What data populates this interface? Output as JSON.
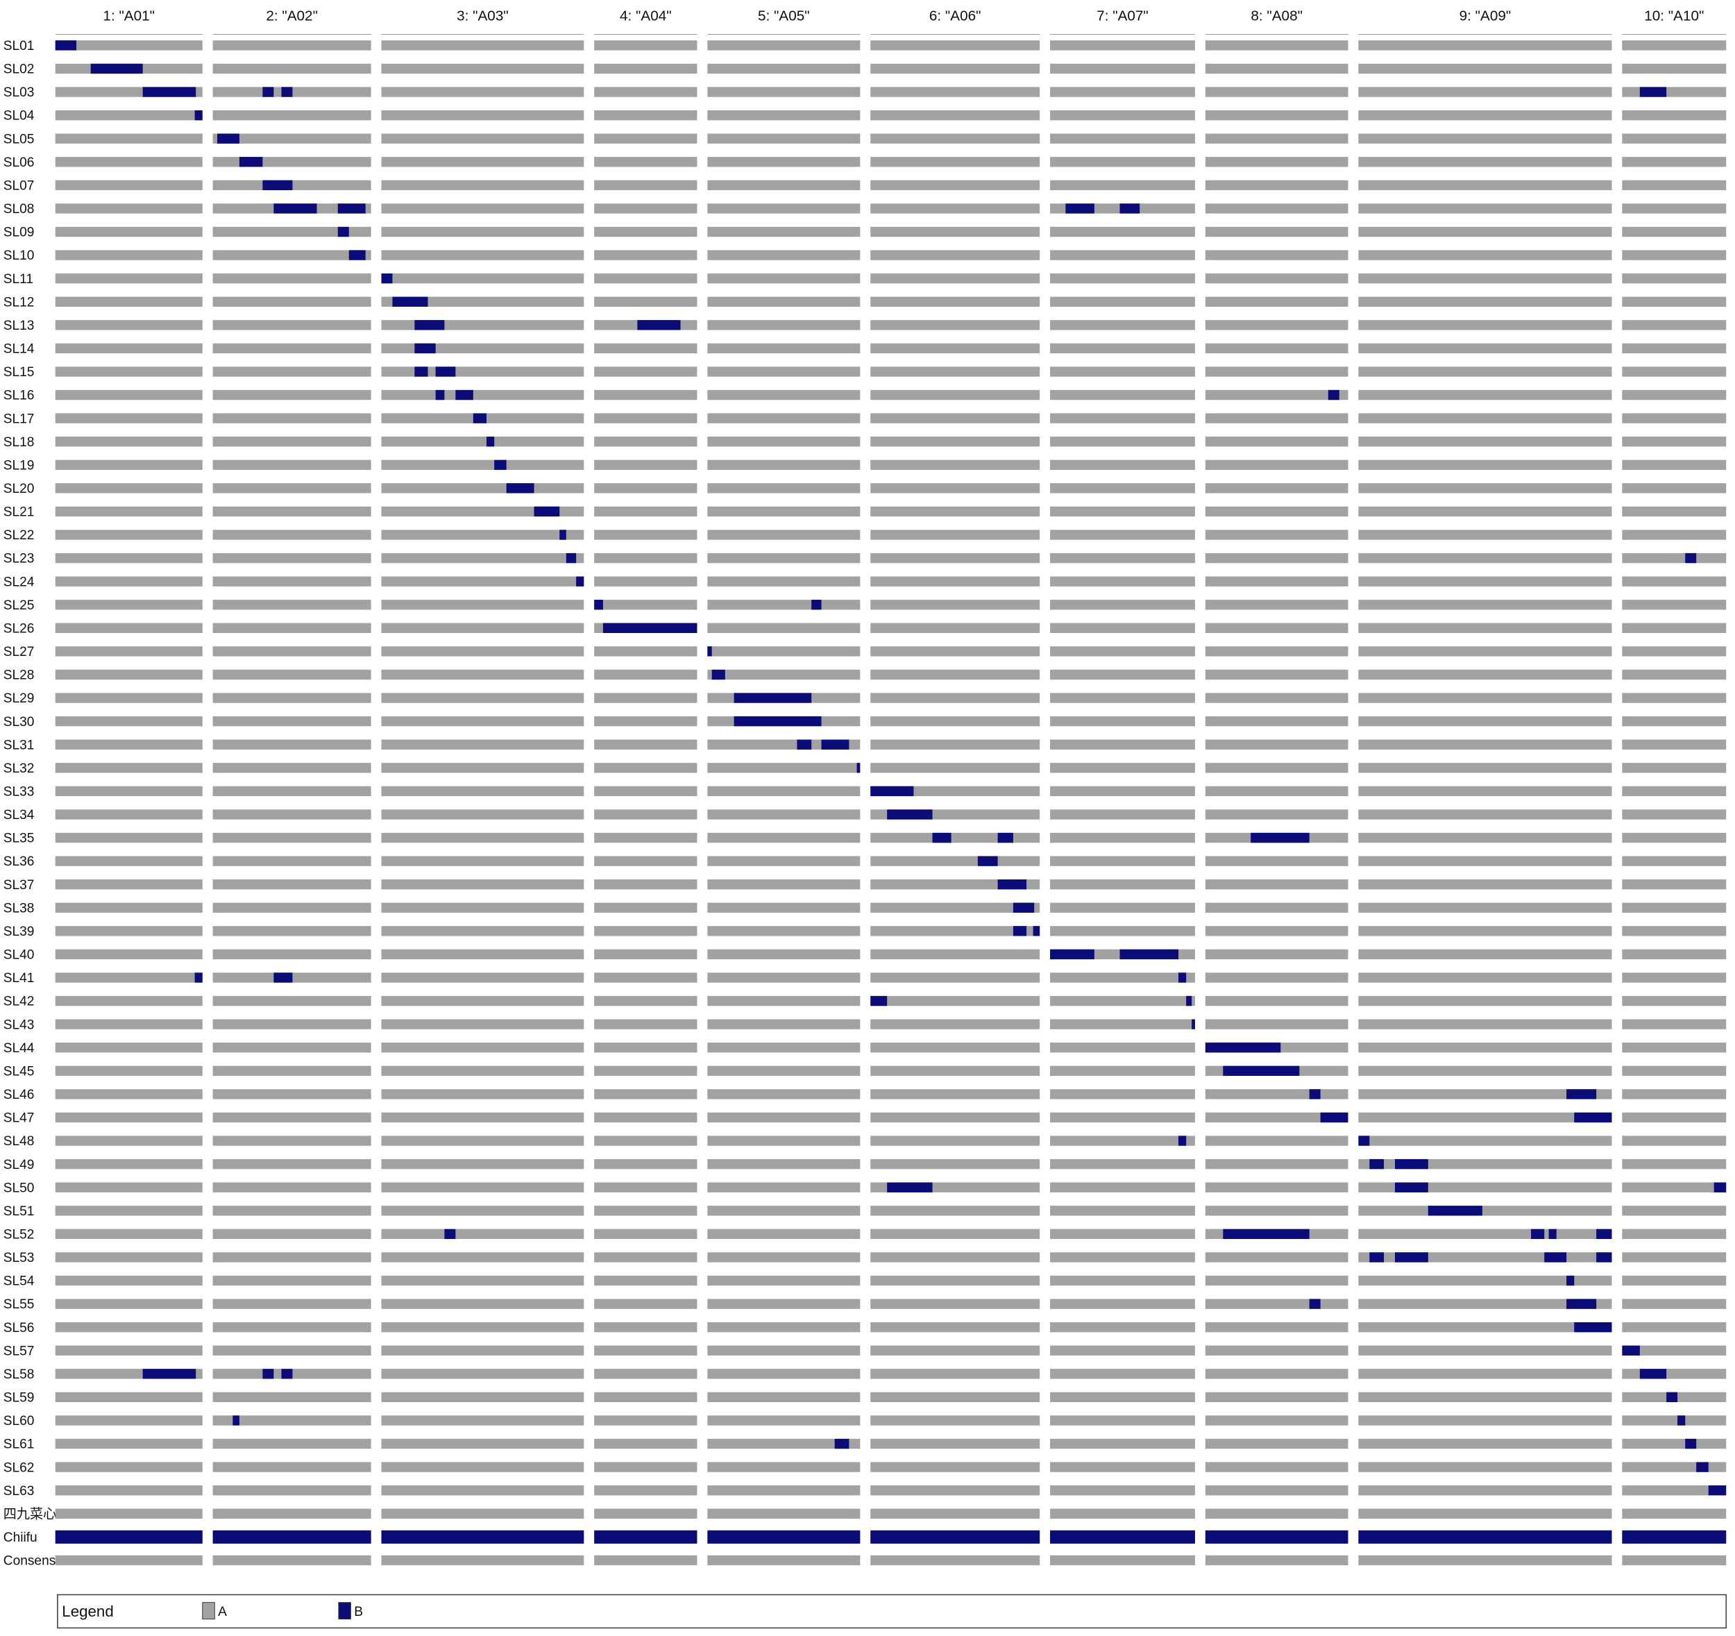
{
  "chart_data": {
    "type": "genotype",
    "chromosomes": [
      {
        "label": "1: \"A01\"",
        "length": 133
      },
      {
        "label": "2: \"A02\"",
        "length": 143
      },
      {
        "label": "3: \"A03\"",
        "length": 183
      },
      {
        "label": "4: \"A04\"",
        "length": 93
      },
      {
        "label": "5: \"A05\"",
        "length": 138
      },
      {
        "label": "6: \"A06\"",
        "length": 153
      },
      {
        "label": "7: \"A07\"",
        "length": 131
      },
      {
        "label": "8: \"A08\"",
        "length": 129
      },
      {
        "label": "9: \"A09\"",
        "length": 229
      },
      {
        "label": "10: \"A10\"",
        "length": 94
      }
    ],
    "rows": [
      {
        "name": "SL01",
        "segments": [
          {
            "chrom": 0,
            "start": 0,
            "end": 19
          }
        ]
      },
      {
        "name": "SL02",
        "segments": [
          {
            "chrom": 0,
            "start": 32,
            "end": 79
          }
        ]
      },
      {
        "name": "SL03",
        "segments": [
          {
            "chrom": 0,
            "start": 79,
            "end": 127
          },
          {
            "chrom": 1,
            "start": 45,
            "end": 55
          },
          {
            "chrom": 1,
            "start": 62,
            "end": 72
          },
          {
            "chrom": 9,
            "start": 16,
            "end": 40
          }
        ]
      },
      {
        "name": "SL04",
        "segments": [
          {
            "chrom": 0,
            "start": 126,
            "end": 133
          }
        ]
      },
      {
        "name": "SL05",
        "segments": [
          {
            "chrom": 1,
            "start": 4,
            "end": 24
          }
        ]
      },
      {
        "name": "SL06",
        "segments": [
          {
            "chrom": 1,
            "start": 24,
            "end": 45
          }
        ]
      },
      {
        "name": "SL07",
        "segments": [
          {
            "chrom": 1,
            "start": 45,
            "end": 72
          }
        ]
      },
      {
        "name": "SL08",
        "segments": [
          {
            "chrom": 1,
            "start": 55,
            "end": 94
          },
          {
            "chrom": 1,
            "start": 113,
            "end": 138
          },
          {
            "chrom": 6,
            "start": 14,
            "end": 40
          },
          {
            "chrom": 6,
            "start": 63,
            "end": 81
          }
        ]
      },
      {
        "name": "SL09",
        "segments": [
          {
            "chrom": 1,
            "start": 113,
            "end": 123
          }
        ]
      },
      {
        "name": "SL10",
        "segments": [
          {
            "chrom": 1,
            "start": 123,
            "end": 138
          }
        ]
      },
      {
        "name": "SL11",
        "segments": [
          {
            "chrom": 2,
            "start": 0,
            "end": 10
          }
        ]
      },
      {
        "name": "SL12",
        "segments": [
          {
            "chrom": 2,
            "start": 10,
            "end": 42
          }
        ]
      },
      {
        "name": "SL13",
        "segments": [
          {
            "chrom": 2,
            "start": 30,
            "end": 57
          },
          {
            "chrom": 3,
            "start": 39,
            "end": 78
          }
        ]
      },
      {
        "name": "SL14",
        "segments": [
          {
            "chrom": 2,
            "start": 30,
            "end": 49
          }
        ]
      },
      {
        "name": "SL15",
        "segments": [
          {
            "chrom": 2,
            "start": 30,
            "end": 42
          },
          {
            "chrom": 2,
            "start": 49,
            "end": 67
          }
        ]
      },
      {
        "name": "SL16",
        "segments": [
          {
            "chrom": 2,
            "start": 49,
            "end": 57
          },
          {
            "chrom": 2,
            "start": 67,
            "end": 83
          },
          {
            "chrom": 7,
            "start": 111,
            "end": 121
          }
        ]
      },
      {
        "name": "SL17",
        "segments": [
          {
            "chrom": 2,
            "start": 83,
            "end": 95
          }
        ]
      },
      {
        "name": "SL18",
        "segments": [
          {
            "chrom": 2,
            "start": 95,
            "end": 102
          }
        ]
      },
      {
        "name": "SL19",
        "segments": [
          {
            "chrom": 2,
            "start": 102,
            "end": 113
          }
        ]
      },
      {
        "name": "SL20",
        "segments": [
          {
            "chrom": 2,
            "start": 113,
            "end": 138
          }
        ]
      },
      {
        "name": "SL21",
        "segments": [
          {
            "chrom": 2,
            "start": 138,
            "end": 161
          }
        ]
      },
      {
        "name": "SL22",
        "segments": [
          {
            "chrom": 2,
            "start": 161,
            "end": 167
          }
        ]
      },
      {
        "name": "SL23",
        "segments": [
          {
            "chrom": 2,
            "start": 167,
            "end": 176
          },
          {
            "chrom": 9,
            "start": 57,
            "end": 67
          }
        ]
      },
      {
        "name": "SL24",
        "segments": [
          {
            "chrom": 2,
            "start": 176,
            "end": 183
          }
        ]
      },
      {
        "name": "SL25",
        "segments": [
          {
            "chrom": 3,
            "start": 0,
            "end": 8
          },
          {
            "chrom": 4,
            "start": 94,
            "end": 103
          }
        ]
      },
      {
        "name": "SL26",
        "segments": [
          {
            "chrom": 3,
            "start": 8,
            "end": 93
          }
        ]
      },
      {
        "name": "SL27",
        "segments": [
          {
            "chrom": 4,
            "start": 0,
            "end": 4
          }
        ]
      },
      {
        "name": "SL28",
        "segments": [
          {
            "chrom": 4,
            "start": 4,
            "end": 16
          }
        ]
      },
      {
        "name": "SL29",
        "segments": [
          {
            "chrom": 4,
            "start": 24,
            "end": 94
          }
        ]
      },
      {
        "name": "SL30",
        "segments": [
          {
            "chrom": 4,
            "start": 24,
            "end": 103
          }
        ]
      },
      {
        "name": "SL31",
        "segments": [
          {
            "chrom": 4,
            "start": 81,
            "end": 94
          },
          {
            "chrom": 4,
            "start": 103,
            "end": 128
          }
        ]
      },
      {
        "name": "SL32",
        "segments": [
          {
            "chrom": 4,
            "start": 135,
            "end": 138
          }
        ]
      },
      {
        "name": "SL33",
        "segments": [
          {
            "chrom": 5,
            "start": 0,
            "end": 39
          }
        ]
      },
      {
        "name": "SL34",
        "segments": [
          {
            "chrom": 5,
            "start": 15,
            "end": 56
          }
        ]
      },
      {
        "name": "SL35",
        "segments": [
          {
            "chrom": 5,
            "start": 56,
            "end": 73
          },
          {
            "chrom": 5,
            "start": 115,
            "end": 129
          },
          {
            "chrom": 7,
            "start": 41,
            "end": 94
          }
        ]
      },
      {
        "name": "SL36",
        "segments": [
          {
            "chrom": 5,
            "start": 97,
            "end": 115
          }
        ]
      },
      {
        "name": "SL37",
        "segments": [
          {
            "chrom": 5,
            "start": 115,
            "end": 141
          }
        ]
      },
      {
        "name": "SL38",
        "segments": [
          {
            "chrom": 5,
            "start": 129,
            "end": 148
          }
        ]
      },
      {
        "name": "SL39",
        "segments": [
          {
            "chrom": 5,
            "start": 129,
            "end": 141
          },
          {
            "chrom": 5,
            "start": 147,
            "end": 153
          }
        ]
      },
      {
        "name": "SL40",
        "segments": [
          {
            "chrom": 6,
            "start": 0,
            "end": 40
          },
          {
            "chrom": 6,
            "start": 63,
            "end": 116
          }
        ]
      },
      {
        "name": "SL41",
        "segments": [
          {
            "chrom": 0,
            "start": 126,
            "end": 133
          },
          {
            "chrom": 1,
            "start": 55,
            "end": 72
          },
          {
            "chrom": 6,
            "start": 116,
            "end": 123
          }
        ]
      },
      {
        "name": "SL42",
        "segments": [
          {
            "chrom": 5,
            "start": 0,
            "end": 15
          },
          {
            "chrom": 6,
            "start": 123,
            "end": 128
          }
        ]
      },
      {
        "name": "SL43",
        "segments": [
          {
            "chrom": 6,
            "start": 128,
            "end": 131
          }
        ]
      },
      {
        "name": "SL44",
        "segments": [
          {
            "chrom": 7,
            "start": 0,
            "end": 68
          }
        ]
      },
      {
        "name": "SL45",
        "segments": [
          {
            "chrom": 7,
            "start": 16,
            "end": 85
          }
        ]
      },
      {
        "name": "SL46",
        "segments": [
          {
            "chrom": 7,
            "start": 94,
            "end": 104
          },
          {
            "chrom": 8,
            "start": 188,
            "end": 215
          }
        ]
      },
      {
        "name": "SL47",
        "segments": [
          {
            "chrom": 7,
            "start": 104,
            "end": 129
          },
          {
            "chrom": 8,
            "start": 195,
            "end": 229
          }
        ]
      },
      {
        "name": "SL48",
        "segments": [
          {
            "chrom": 6,
            "start": 116,
            "end": 123
          },
          {
            "chrom": 8,
            "start": 0,
            "end": 10
          }
        ]
      },
      {
        "name": "SL49",
        "segments": [
          {
            "chrom": 8,
            "start": 10,
            "end": 23
          },
          {
            "chrom": 8,
            "start": 33,
            "end": 63
          }
        ]
      },
      {
        "name": "SL50",
        "segments": [
          {
            "chrom": 5,
            "start": 15,
            "end": 56
          },
          {
            "chrom": 8,
            "start": 33,
            "end": 63
          },
          {
            "chrom": 9,
            "start": 83,
            "end": 94
          }
        ]
      },
      {
        "name": "SL51",
        "segments": [
          {
            "chrom": 8,
            "start": 63,
            "end": 112
          }
        ]
      },
      {
        "name": "SL52",
        "segments": [
          {
            "chrom": 2,
            "start": 57,
            "end": 67
          },
          {
            "chrom": 7,
            "start": 16,
            "end": 94
          },
          {
            "chrom": 8,
            "start": 156,
            "end": 168
          },
          {
            "chrom": 8,
            "start": 172,
            "end": 179
          },
          {
            "chrom": 8,
            "start": 215,
            "end": 229
          }
        ]
      },
      {
        "name": "SL53",
        "segments": [
          {
            "chrom": 8,
            "start": 10,
            "end": 23
          },
          {
            "chrom": 8,
            "start": 33,
            "end": 63
          },
          {
            "chrom": 8,
            "start": 168,
            "end": 188
          },
          {
            "chrom": 8,
            "start": 215,
            "end": 229
          }
        ]
      },
      {
        "name": "SL54",
        "segments": [
          {
            "chrom": 8,
            "start": 188,
            "end": 195
          }
        ]
      },
      {
        "name": "SL55",
        "segments": [
          {
            "chrom": 7,
            "start": 94,
            "end": 104
          },
          {
            "chrom": 8,
            "start": 188,
            "end": 215
          }
        ]
      },
      {
        "name": "SL56",
        "segments": [
          {
            "chrom": 8,
            "start": 195,
            "end": 229
          }
        ]
      },
      {
        "name": "SL57",
        "segments": [
          {
            "chrom": 9,
            "start": 0,
            "end": 16
          }
        ]
      },
      {
        "name": "SL58",
        "segments": [
          {
            "chrom": 0,
            "start": 79,
            "end": 127
          },
          {
            "chrom": 1,
            "start": 45,
            "end": 55
          },
          {
            "chrom": 1,
            "start": 62,
            "end": 72
          },
          {
            "chrom": 9,
            "start": 16,
            "end": 40
          }
        ]
      },
      {
        "name": "SL59",
        "segments": [
          {
            "chrom": 9,
            "start": 40,
            "end": 50
          }
        ]
      },
      {
        "name": "SL60",
        "segments": [
          {
            "chrom": 1,
            "start": 18,
            "end": 24
          },
          {
            "chrom": 9,
            "start": 50,
            "end": 57
          }
        ]
      },
      {
        "name": "SL61",
        "segments": [
          {
            "chrom": 4,
            "start": 115,
            "end": 128
          },
          {
            "chrom": 9,
            "start": 57,
            "end": 67
          }
        ]
      },
      {
        "name": "SL62",
        "segments": [
          {
            "chrom": 9,
            "start": 67,
            "end": 78
          }
        ]
      },
      {
        "name": "SL63",
        "segments": [
          {
            "chrom": 9,
            "start": 78,
            "end": 94
          }
        ]
      },
      {
        "name": "四九菜心",
        "segments": []
      },
      {
        "name": "Chiifu",
        "segments": [
          {
            "chrom": 0,
            "start": 0,
            "end": 133
          },
          {
            "chrom": 1,
            "start": 0,
            "end": 143
          },
          {
            "chrom": 2,
            "start": 0,
            "end": 183
          },
          {
            "chrom": 3,
            "start": 0,
            "end": 93
          },
          {
            "chrom": 4,
            "start": 0,
            "end": 138
          },
          {
            "chrom": 5,
            "start": 0,
            "end": 153
          },
          {
            "chrom": 6,
            "start": 0,
            "end": 131
          },
          {
            "chrom": 7,
            "start": 0,
            "end": 129
          },
          {
            "chrom": 8,
            "start": 0,
            "end": 229
          },
          {
            "chrom": 9,
            "start": 0,
            "end": 94
          }
        ]
      },
      {
        "name": "Consensus",
        "segments": []
      }
    ],
    "legend_title": "Legend",
    "legend": [
      {
        "name": "A",
        "color": "#a2a2a2"
      },
      {
        "name": "B",
        "color": "#0c0c78"
      }
    ]
  }
}
